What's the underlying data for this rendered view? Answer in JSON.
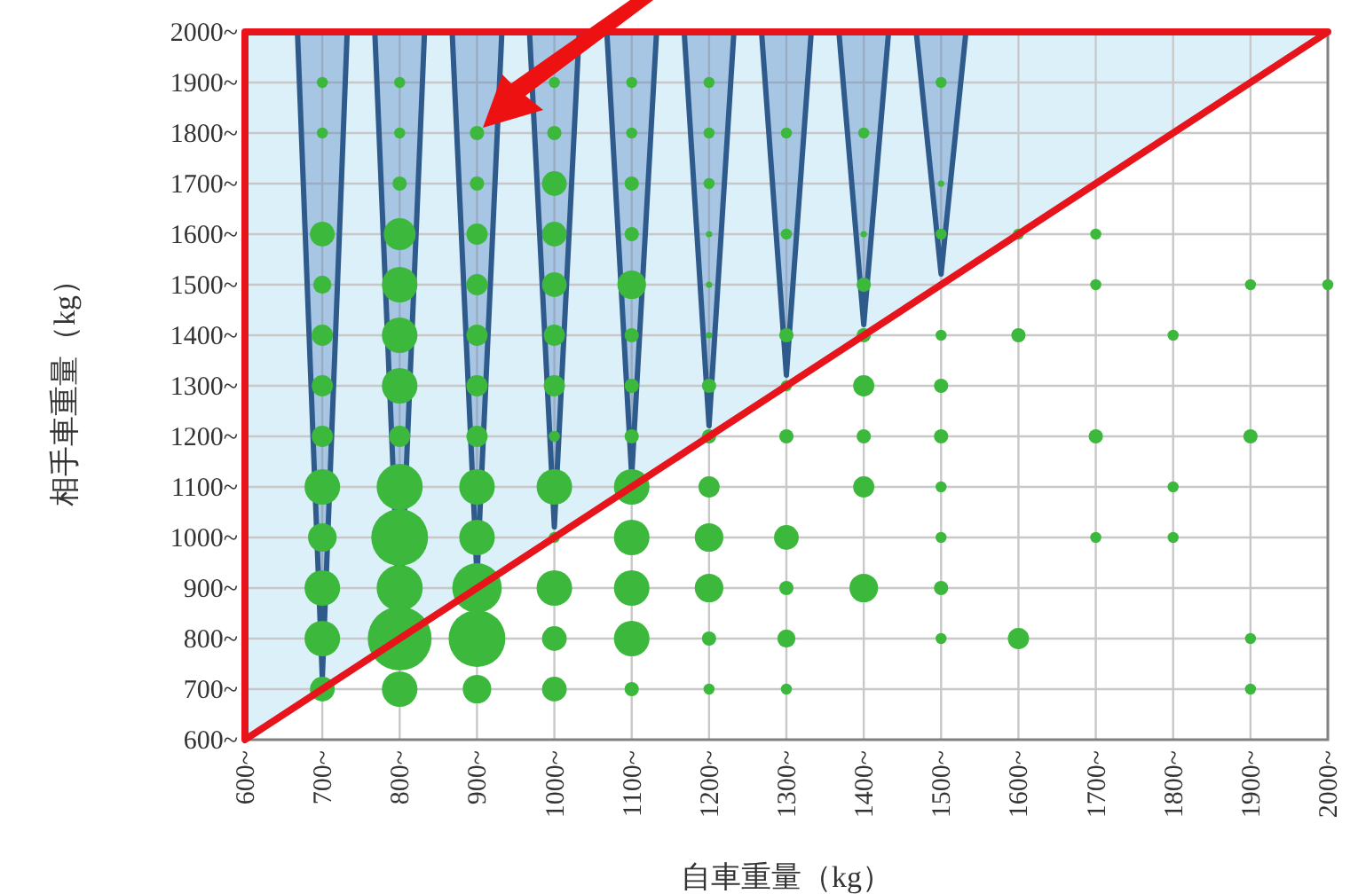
{
  "chart_data": {
    "type": "bubble",
    "xlabel": "自車重量（kg）",
    "ylabel": "相手車重量（kg）",
    "xlim": [
      600,
      2000
    ],
    "ylim": [
      600,
      2000
    ],
    "xticks": [
      {
        "value": 600,
        "label": "600~"
      },
      {
        "value": 700,
        "label": "700~"
      },
      {
        "value": 800,
        "label": "800~"
      },
      {
        "value": 900,
        "label": "900~"
      },
      {
        "value": 1000,
        "label": "1000~"
      },
      {
        "value": 1100,
        "label": "1100~"
      },
      {
        "value": 1200,
        "label": "1200~"
      },
      {
        "value": 1300,
        "label": "1300~"
      },
      {
        "value": 1400,
        "label": "1400~"
      },
      {
        "value": 1500,
        "label": "1500~"
      },
      {
        "value": 1600,
        "label": "1600~"
      },
      {
        "value": 1700,
        "label": "1700~"
      },
      {
        "value": 1800,
        "label": "1800~"
      },
      {
        "value": 1900,
        "label": "1900~"
      },
      {
        "value": 2000,
        "label": "2000~"
      }
    ],
    "yticks": [
      {
        "value": 600,
        "label": "600~"
      },
      {
        "value": 700,
        "label": "700~"
      },
      {
        "value": 800,
        "label": "800~"
      },
      {
        "value": 900,
        "label": "900~"
      },
      {
        "value": 1000,
        "label": "1000~"
      },
      {
        "value": 1100,
        "label": "1100~"
      },
      {
        "value": 1200,
        "label": "1200~"
      },
      {
        "value": 1300,
        "label": "1300~"
      },
      {
        "value": 1400,
        "label": "1400~"
      },
      {
        "value": 1500,
        "label": "1500~"
      },
      {
        "value": 1600,
        "label": "1600~"
      },
      {
        "value": 1700,
        "label": "1700~"
      },
      {
        "value": 1800,
        "label": "1800~"
      },
      {
        "value": 1900,
        "label": "1900~"
      },
      {
        "value": 2000,
        "label": "2000~"
      }
    ],
    "grid": true,
    "series": [
      {
        "type": "area",
        "color": "#e8141c",
        "x": [
          600,
          600,
          2000,
          600
        ],
        "values": [
          600,
          2000,
          2000,
          600
        ]
      },
      {
        "type": "bubble",
        "color": "#3cb83c",
        "x": [
          700,
          700,
          700,
          700,
          700,
          700,
          700,
          700,
          700,
          700,
          700,
          700,
          800,
          800,
          800,
          800,
          800,
          800,
          800,
          800,
          800,
          800,
          800,
          800,
          800,
          900,
          900,
          900,
          900,
          900,
          900,
          900,
          900,
          900,
          900,
          900,
          900,
          1000,
          1000,
          1000,
          1000,
          1000,
          1000,
          1000,
          1000,
          1000,
          1000,
          1000,
          1000,
          1000,
          1100,
          1100,
          1100,
          1100,
          1100,
          1100,
          1100,
          1100,
          1100,
          1100,
          1100,
          1100,
          1100,
          1200,
          1200,
          1200,
          1200,
          1200,
          1200,
          1200,
          1200,
          1200,
          1200,
          1200,
          1200,
          1200,
          1300,
          1300,
          1300,
          1300,
          1300,
          1300,
          1300,
          1300,
          1300,
          1400,
          1400,
          1400,
          1400,
          1400,
          1400,
          1400,
          1400,
          1500,
          1500,
          1500,
          1500,
          1500,
          1500,
          1500,
          1500,
          1500,
          1500,
          1600,
          1600,
          1600,
          1700,
          1700,
          1700,
          1700,
          1800,
          1800,
          1800,
          1900,
          1900,
          1900,
          1900,
          2000
        ],
        "values": [
          1900,
          1800,
          1600,
          1500,
          1400,
          1300,
          1200,
          1100,
          1000,
          900,
          800,
          700,
          1900,
          1800,
          1700,
          1600,
          1500,
          1400,
          1300,
          1200,
          1100,
          1000,
          900,
          800,
          700,
          1800,
          1700,
          1600,
          1500,
          1400,
          1300,
          1200,
          1100,
          1000,
          900,
          800,
          700,
          1900,
          1800,
          1700,
          1600,
          1500,
          1400,
          1300,
          1200,
          1100,
          1000,
          900,
          800,
          700,
          1900,
          1800,
          1700,
          1600,
          1500,
          1400,
          1300,
          1200,
          1100,
          1000,
          900,
          800,
          700,
          1900,
          1800,
          1700,
          1600,
          1500,
          1400,
          1300,
          1200,
          1100,
          1000,
          900,
          800,
          700,
          1800,
          1600,
          1400,
          1300,
          1200,
          1000,
          900,
          800,
          700,
          1800,
          1600,
          1500,
          1400,
          1300,
          1200,
          1100,
          900,
          1900,
          1700,
          1600,
          1400,
          1300,
          1200,
          1100,
          1000,
          900,
          800,
          1600,
          1400,
          800,
          1600,
          1500,
          1200,
          1000,
          1400,
          1100,
          1000,
          1500,
          1200,
          800,
          700,
          1500
        ],
        "sizes": [
          0.03,
          0.03,
          0.15,
          0.08,
          0.11,
          0.11,
          0.11,
          0.31,
          0.2,
          0.31,
          0.31,
          0.15,
          0.03,
          0.03,
          0.05,
          0.25,
          0.31,
          0.31,
          0.31,
          0.11,
          0.52,
          0.79,
          0.52,
          1,
          0.31,
          0.05,
          0.05,
          0.11,
          0.11,
          0.11,
          0.11,
          0.11,
          0.31,
          0.31,
          0.6,
          0.79,
          0.2,
          0.03,
          0.05,
          0.15,
          0.15,
          0.15,
          0.11,
          0.11,
          0.03,
          0.31,
          0.03,
          0.31,
          0.15,
          0.15,
          0.03,
          0.03,
          0.05,
          0.05,
          0.2,
          0.05,
          0.05,
          0.05,
          0.31,
          0.31,
          0.31,
          0.31,
          0.05,
          0.03,
          0.03,
          0.03,
          0.01,
          0.01,
          0.01,
          0.05,
          0.05,
          0.11,
          0.2,
          0.2,
          0.05,
          0.03,
          0.03,
          0.03,
          0.05,
          0.03,
          0.05,
          0.15,
          0.05,
          0.08,
          0.03,
          0.03,
          0.01,
          0.05,
          0.05,
          0.11,
          0.05,
          0.11,
          0.2,
          0.03,
          0.01,
          0.03,
          0.03,
          0.05,
          0.05,
          0.03,
          0.03,
          0.05,
          0.03,
          0.03,
          0.05,
          0.11,
          0.03,
          0.03,
          0.05,
          0.03,
          0.03,
          0.03,
          0.03,
          0.03,
          0.05,
          0.03,
          0.03,
          0.03
        ]
      }
    ]
  }
}
